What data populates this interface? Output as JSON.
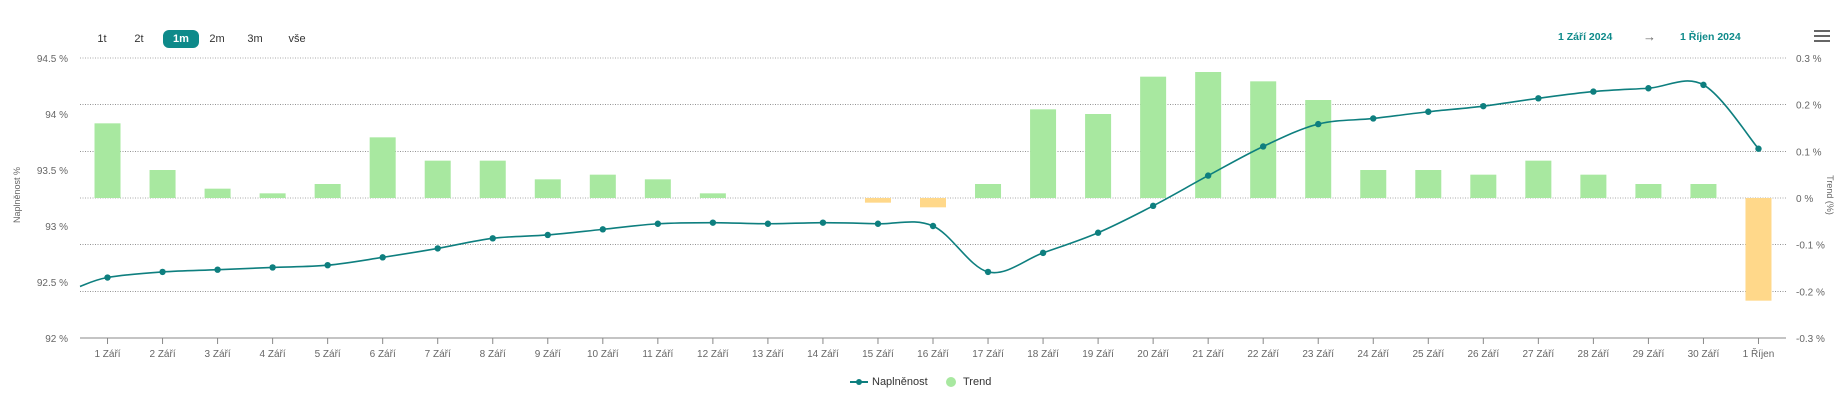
{
  "range_selector": {
    "buttons": [
      {
        "label": "1t",
        "active": false
      },
      {
        "label": "2t",
        "active": false
      },
      {
        "label": "1m",
        "active": true
      },
      {
        "label": "2m",
        "active": false
      },
      {
        "label": "3m",
        "active": false
      },
      {
        "label": "vše",
        "active": false
      }
    ]
  },
  "date_range": {
    "from": "1 Září 2024",
    "arrow": "→",
    "to": "1 Říjen 2024"
  },
  "chart_data": {
    "type": "line+bar",
    "categories": [
      "1 Září",
      "2 Září",
      "3 Září",
      "4 Září",
      "5 Září",
      "6 Září",
      "7 Září",
      "8 Září",
      "9 Září",
      "10 Září",
      "11 Září",
      "12 Září",
      "13 Září",
      "14 Září",
      "15 Září",
      "16 Září",
      "17 Září",
      "18 Září",
      "19 Září",
      "20 Září",
      "21 Září",
      "22 Září",
      "23 Září",
      "24 Září",
      "25 Září",
      "26 Září",
      "27 Září",
      "28 Září",
      "29 Září",
      "30 Září",
      "1 Říjen"
    ],
    "series": [
      {
        "name": "Naplněnost",
        "type": "line",
        "axis": "left",
        "color": "#0e7f7f",
        "values": [
          92.54,
          92.59,
          92.61,
          92.63,
          92.65,
          92.72,
          92.8,
          92.89,
          92.92,
          92.97,
          93.02,
          93.03,
          93.02,
          93.03,
          93.02,
          93.0,
          92.59,
          92.76,
          92.94,
          93.18,
          93.45,
          93.71,
          93.91,
          93.96,
          94.02,
          94.07,
          94.14,
          94.2,
          94.23,
          94.26,
          93.69
        ]
      },
      {
        "name": "Trend",
        "type": "bar",
        "axis": "right",
        "color_pos": "#a8e8a0",
        "color_neg": "#ffd88a",
        "values": [
          0.16,
          0.06,
          0.02,
          0.01,
          0.03,
          0.13,
          0.08,
          0.08,
          0.04,
          0.05,
          0.04,
          0.01,
          0,
          0,
          -0.01,
          -0.02,
          0.03,
          0.19,
          0.18,
          0.26,
          0.27,
          0.25,
          0.21,
          0.06,
          0.06,
          0.05,
          0.08,
          0.05,
          0.03,
          0.03,
          -0.22
        ]
      }
    ],
    "y_left": {
      "label": "Naplněnost %",
      "min": 92,
      "max": 94.5,
      "ticks": [
        "92 %",
        "92.5 %",
        "93 %",
        "93.5 %",
        "94 %",
        "94.5 %"
      ],
      "tick_values": [
        92,
        92.5,
        93,
        93.5,
        94,
        94.5
      ]
    },
    "y_right": {
      "label": "Trend (%)",
      "min": -0.3,
      "max": 0.3,
      "ticks": [
        "-0.3 %",
        "-0.2 %",
        "-0.1 %",
        "0 %",
        "0.1 %",
        "0.2 %",
        "0.3 %"
      ],
      "tick_values": [
        -0.3,
        -0.2,
        -0.1,
        0,
        0.1,
        0.2,
        0.3
      ]
    },
    "grid": "dotted horizontal",
    "legend_position": "bottom-center"
  },
  "legend": [
    {
      "label": "Naplněnost",
      "color": "#0e7f7f",
      "marker": "line-dot"
    },
    {
      "label": "Trend",
      "color": "#a8e8a0",
      "marker": "circle"
    }
  ]
}
